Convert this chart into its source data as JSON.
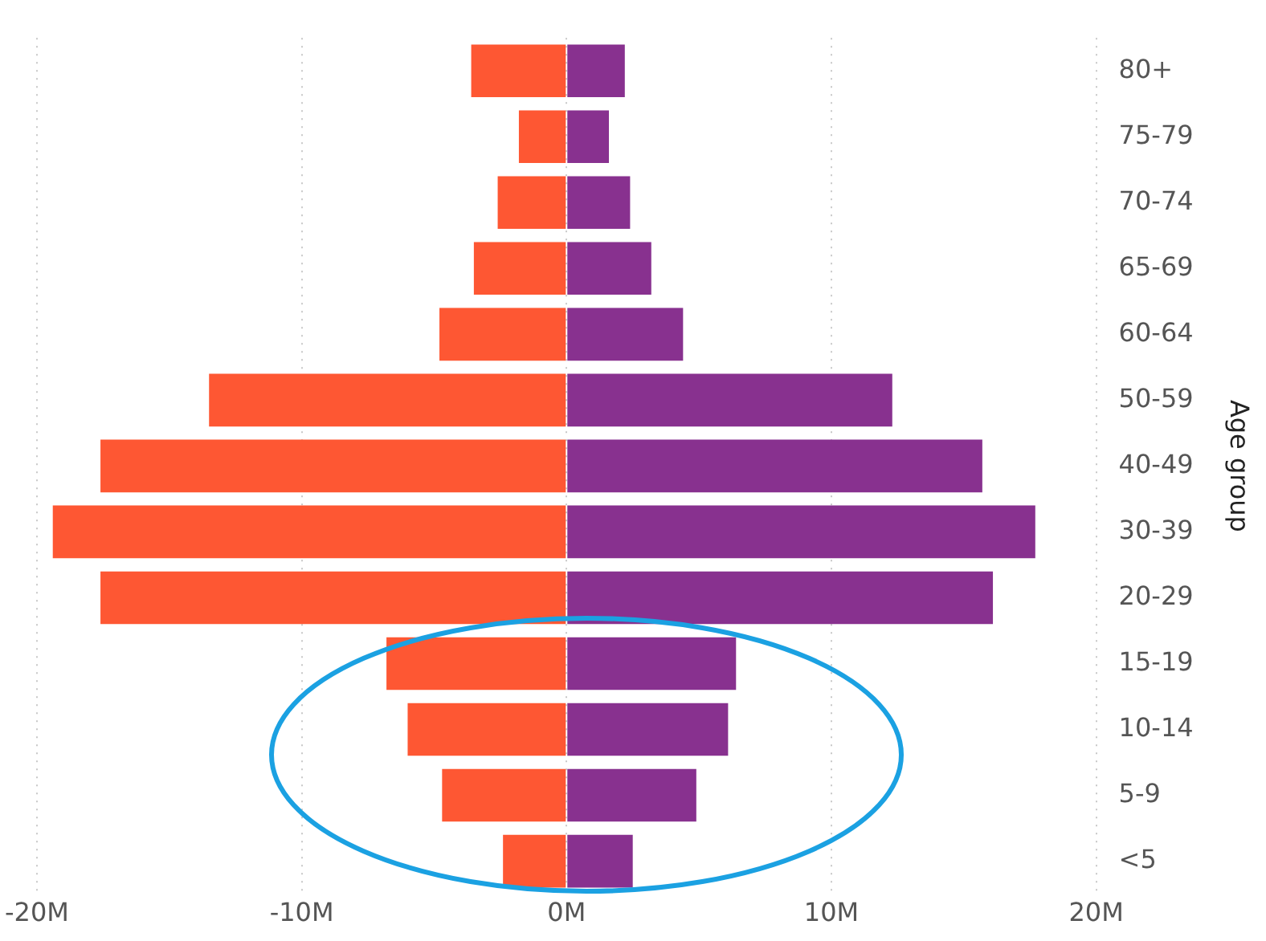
{
  "chart_data": {
    "type": "bar",
    "orientation": "horizontal",
    "stacked": true,
    "ylabel": "Age group",
    "categories": [
      "80+",
      "75-79",
      "70-74",
      "65-69",
      "60-64",
      "50-59",
      "40-49",
      "30-39",
      "20-29",
      "15-19",
      "10-14",
      "5-9",
      "<5"
    ],
    "series": [
      {
        "color": "#fe5733",
        "values": [
          -3.6,
          -1.8,
          -2.6,
          -3.5,
          -4.8,
          -13.5,
          -17.6,
          -19.4,
          -17.6,
          -6.8,
          -6.0,
          -4.7,
          -2.4
        ]
      },
      {
        "color": "#88318f",
        "values": [
          2.2,
          1.6,
          2.4,
          3.2,
          4.4,
          12.3,
          15.7,
          17.7,
          16.1,
          6.4,
          6.1,
          4.9,
          2.5
        ]
      }
    ],
    "xlim": [
      -20,
      20
    ],
    "xticks": [
      {
        "value": -20,
        "label": "-20M"
      },
      {
        "value": -10,
        "label": "-10M"
      },
      {
        "value": 0,
        "label": "0M"
      },
      {
        "value": 10,
        "label": "10M"
      },
      {
        "value": 20,
        "label": "20M"
      }
    ],
    "grid": "x",
    "legend": false
  }
}
